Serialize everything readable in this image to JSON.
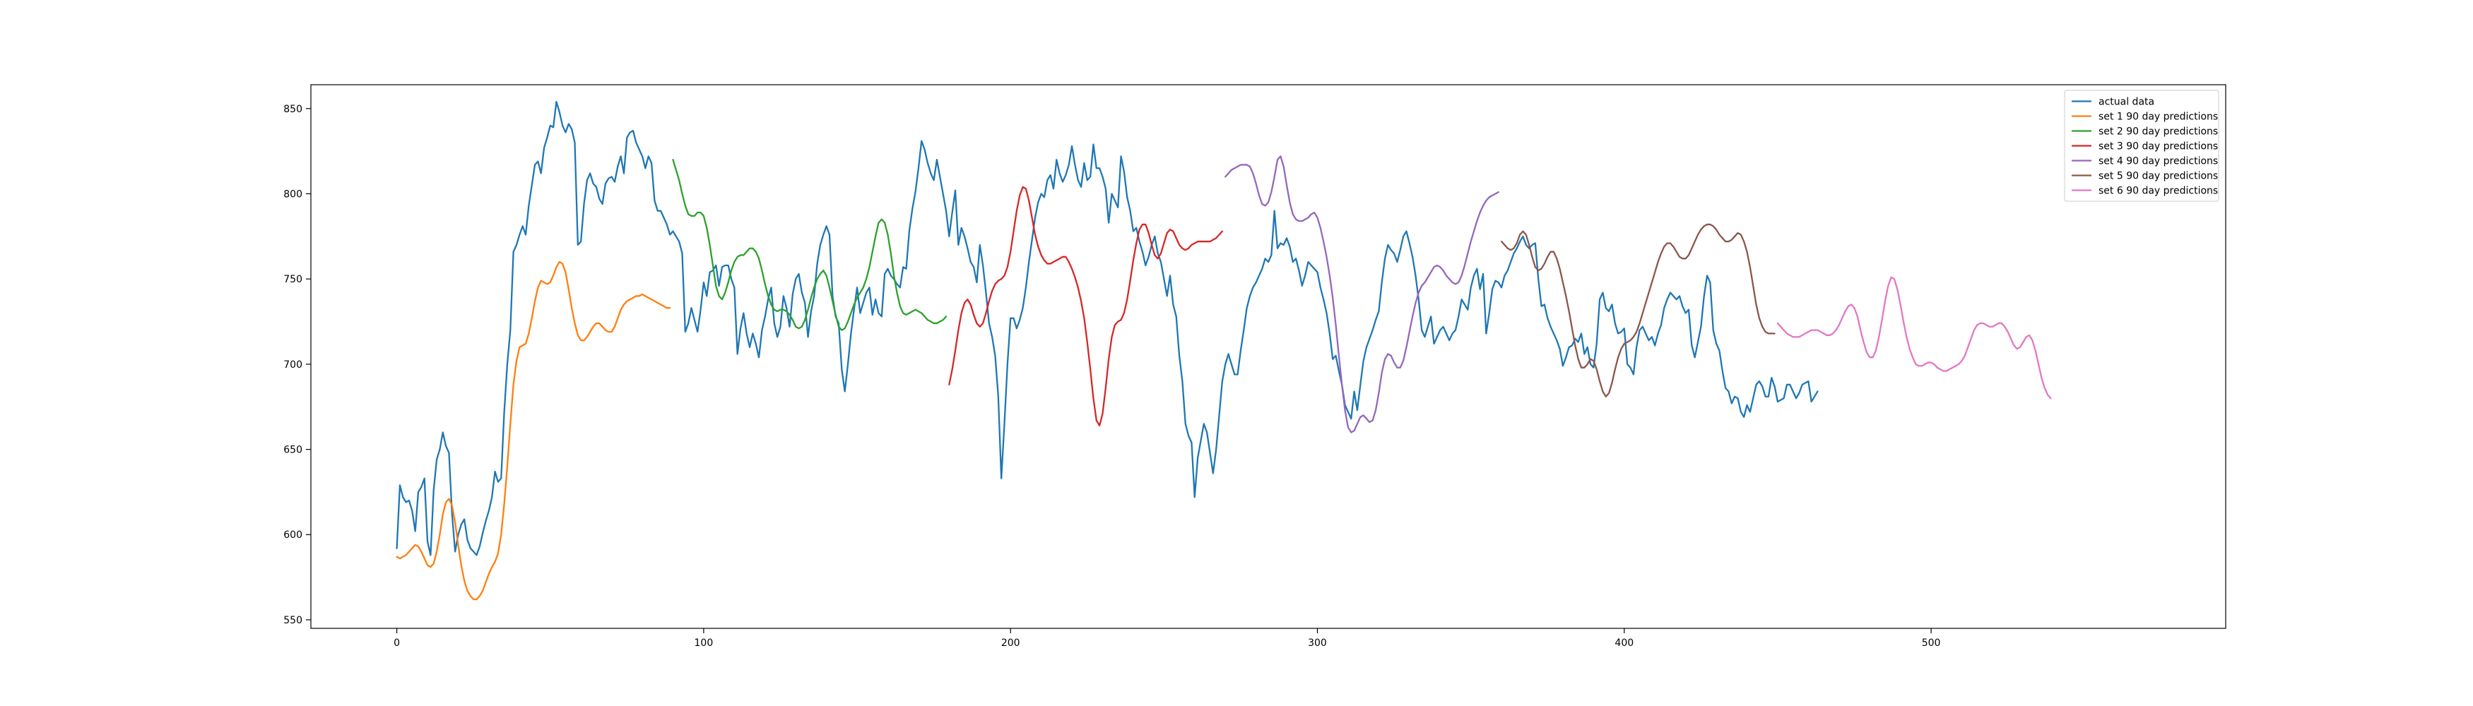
{
  "chart_data": {
    "type": "line",
    "title": "",
    "xlabel": "",
    "ylabel": "",
    "xlim": [
      -28,
      596
    ],
    "ylim": [
      545,
      864
    ],
    "xticks": [
      0,
      100,
      200,
      300,
      400,
      500
    ],
    "yticks": [
      550,
      600,
      650,
      700,
      750,
      800,
      850
    ],
    "grid": false,
    "legend_position": "top-right",
    "series": [
      {
        "name": "actual data",
        "color": "#1f77b4",
        "x_start": 0,
        "values": [
          592,
          629,
          622,
          619,
          620,
          614,
          602,
          625,
          628,
          633,
          596,
          588,
          626,
          644,
          650,
          660,
          652,
          648,
          612,
          590,
          600,
          606,
          609,
          597,
          592,
          590,
          588,
          593,
          601,
          608,
          614,
          622,
          637,
          631,
          633,
          672,
          700,
          720,
          766,
          770,
          776,
          781,
          776,
          793,
          805,
          817,
          819,
          812,
          827,
          833,
          840,
          839,
          854,
          848,
          840,
          836,
          841,
          838,
          830,
          770,
          772,
          794,
          808,
          812,
          806,
          804,
          797,
          794,
          806,
          809,
          810,
          807,
          816,
          822,
          812,
          833,
          836,
          837,
          830,
          826,
          822,
          815,
          822,
          818,
          796,
          790,
          790,
          786,
          782,
          776,
          778,
          775,
          772,
          765,
          719,
          724,
          733,
          726,
          719,
          732,
          748,
          740,
          754,
          755,
          758,
          746,
          757,
          758,
          758,
          750,
          745,
          706,
          721,
          730,
          718,
          710,
          718,
          712,
          704,
          720,
          728,
          738,
          745,
          724,
          716,
          722,
          740,
          733,
          722,
          741,
          750,
          753,
          742,
          736,
          716,
          731,
          740,
          759,
          770,
          776,
          781,
          776,
          740,
          728,
          724,
          697,
          684,
          700,
          718,
          732,
          745,
          730,
          736,
          742,
          745,
          729,
          738,
          730,
          728,
          753,
          756,
          752,
          750,
          747,
          745,
          757,
          756,
          778,
          791,
          801,
          815,
          831,
          826,
          818,
          812,
          808,
          820,
          810,
          800,
          790,
          775,
          789,
          802,
          770,
          780,
          775,
          768,
          760,
          757,
          748,
          770,
          758,
          742,
          724,
          716,
          705,
          681,
          633,
          665,
          700,
          727,
          727,
          721,
          726,
          733,
          745,
          760,
          773,
          786,
          795,
          800,
          798,
          808,
          811,
          803,
          820,
          812,
          807,
          811,
          817,
          828,
          817,
          808,
          804,
          818,
          808,
          810,
          829,
          815,
          815,
          810,
          803,
          783,
          800,
          796,
          792,
          822,
          813,
          798,
          790,
          778,
          780,
          772,
          766,
          758,
          763,
          770,
          775,
          765,
          760,
          750,
          740,
          752,
          735,
          728,
          705,
          690,
          665,
          658,
          654,
          622,
          645,
          655,
          665,
          660,
          648,
          636,
          650,
          670,
          690,
          700,
          706,
          700,
          694,
          694,
          708,
          720,
          733,
          740,
          745,
          748,
          752,
          756,
          762,
          760,
          764,
          790,
          768,
          771,
          770,
          774,
          769,
          760,
          762,
          755,
          746,
          752,
          760,
          758,
          756,
          754,
          745,
          738,
          730,
          718,
          703,
          705,
          696,
          688,
          676,
          672,
          668,
          684,
          673,
          688,
          702,
          710,
          715,
          720,
          726,
          731,
          748,
          762,
          770,
          767,
          765,
          760,
          767,
          775,
          778,
          771,
          763,
          752,
          738,
          720,
          716,
          722,
          728,
          712,
          716,
          720,
          722,
          718,
          714,
          718,
          720,
          728,
          738,
          735,
          732,
          745,
          752,
          756,
          744,
          753,
          718,
          730,
          744,
          749,
          748,
          745,
          752,
          755,
          760,
          765,
          768,
          772,
          775,
          770,
          768,
          770,
          771,
          750,
          734,
          735,
          727,
          722,
          718,
          714,
          709,
          699,
          704,
          710,
          711,
          715,
          713,
          718,
          706,
          710,
          700,
          698,
          712,
          738,
          742,
          733,
          731,
          735,
          724,
          718,
          719,
          721,
          700,
          698,
          694,
          710,
          720,
          722,
          718,
          714,
          716,
          711,
          718,
          723,
          733,
          738,
          742,
          740,
          738,
          740,
          734,
          730,
          732,
          711,
          704,
          713,
          722,
          740,
          752,
          748,
          720,
          712,
          708,
          696,
          686,
          684,
          677,
          681,
          680,
          672,
          669,
          676,
          672,
          680,
          688,
          690,
          687,
          681,
          681,
          692,
          687,
          678,
          679,
          680,
          688,
          688,
          684,
          680,
          683,
          688,
          689,
          690,
          678,
          681,
          684
        ]
      },
      {
        "name": "set 1 90 day predictions",
        "color": "#ff7f0e",
        "x_start": 0,
        "values": [
          587,
          586,
          587,
          588,
          590,
          592,
          594,
          593,
          590,
          586,
          582,
          581,
          583,
          590,
          600,
          612,
          619,
          621,
          617,
          607,
          594,
          582,
          573,
          567,
          564,
          562,
          562,
          564,
          567,
          572,
          577,
          581,
          584,
          589,
          600,
          618,
          640,
          665,
          688,
          702,
          710,
          711,
          712,
          718,
          727,
          737,
          745,
          749,
          748,
          747,
          748,
          752,
          757,
          760,
          759,
          754,
          744,
          733,
          724,
          717,
          714,
          714,
          716,
          719,
          722,
          724,
          724,
          722,
          720,
          719,
          719,
          722,
          727,
          732,
          735,
          737,
          738,
          739,
          740,
          740,
          741,
          740,
          739,
          738,
          737,
          736,
          735,
          734,
          733,
          733
        ]
      },
      {
        "name": "set 2 90 day predictions",
        "color": "#2ca02c",
        "x_start": 90,
        "values": [
          820,
          814,
          808,
          800,
          793,
          788,
          787,
          787,
          789,
          789,
          787,
          780,
          770,
          758,
          746,
          740,
          738,
          742,
          748,
          755,
          760,
          763,
          764,
          764,
          766,
          768,
          768,
          766,
          762,
          755,
          747,
          740,
          735,
          732,
          731,
          732,
          732,
          731,
          729,
          726,
          722,
          721,
          722,
          726,
          732,
          739,
          745,
          750,
          753,
          755,
          752,
          745,
          737,
          729,
          722,
          720,
          721,
          725,
          730,
          735,
          739,
          742,
          745,
          750,
          757,
          766,
          775,
          783,
          785,
          783,
          776,
          765,
          752,
          742,
          734,
          730,
          729,
          730,
          731,
          732,
          731,
          730,
          728,
          726,
          725,
          724,
          724,
          725,
          726,
          728
        ]
      },
      {
        "name": "set 3 90 day predictions",
        "color": "#d62728",
        "x_start": 180,
        "values": [
          688,
          697,
          708,
          720,
          730,
          736,
          738,
          735,
          729,
          724,
          722,
          724,
          730,
          737,
          743,
          747,
          749,
          750,
          752,
          757,
          766,
          778,
          790,
          799,
          804,
          803,
          796,
          786,
          776,
          769,
          764,
          761,
          759,
          759,
          760,
          761,
          762,
          763,
          763,
          760,
          756,
          751,
          745,
          737,
          727,
          713,
          697,
          680,
          667,
          664,
          671,
          686,
          703,
          716,
          723,
          725,
          726,
          730,
          738,
          749,
          761,
          771,
          779,
          782,
          782,
          777,
          770,
          764,
          762,
          765,
          771,
          777,
          779,
          778,
          774,
          770,
          768,
          767,
          768,
          770,
          771,
          772,
          772,
          772,
          772,
          772,
          773,
          774,
          776,
          778
        ]
      },
      {
        "name": "set 4 90 day predictions",
        "color": "#9467bd",
        "x_start": 270,
        "values": [
          810,
          812,
          814,
          815,
          816,
          817,
          817,
          817,
          816,
          812,
          806,
          799,
          794,
          793,
          795,
          801,
          810,
          820,
          822,
          816,
          805,
          795,
          788,
          785,
          784,
          784,
          785,
          786,
          788,
          789,
          786,
          780,
          772,
          763,
          752,
          739,
          723,
          705,
          688,
          673,
          663,
          660,
          661,
          665,
          669,
          670,
          668,
          666,
          667,
          673,
          683,
          695,
          703,
          706,
          705,
          701,
          698,
          698,
          702,
          710,
          719,
          728,
          736,
          742,
          746,
          748,
          751,
          754,
          757,
          758,
          757,
          755,
          752,
          750,
          748,
          747,
          748,
          752,
          758,
          765,
          772,
          778,
          784,
          789,
          793,
          796,
          798,
          799,
          800,
          801
        ]
      },
      {
        "name": "set 5 90 day predictions",
        "color": "#8c564b",
        "x_start": 360,
        "values": [
          772,
          770,
          768,
          767,
          768,
          771,
          776,
          778,
          776,
          770,
          763,
          757,
          755,
          756,
          759,
          763,
          766,
          766,
          762,
          756,
          748,
          740,
          731,
          721,
          711,
          703,
          698,
          698,
          700,
          703,
          702,
          697,
          690,
          684,
          681,
          683,
          689,
          697,
          704,
          709,
          712,
          713,
          714,
          716,
          719,
          724,
          730,
          736,
          742,
          748,
          754,
          760,
          765,
          769,
          771,
          771,
          769,
          766,
          763,
          762,
          762,
          764,
          768,
          772,
          776,
          779,
          781,
          782,
          782,
          781,
          779,
          776,
          774,
          772,
          772,
          773,
          775,
          777,
          776,
          772,
          766,
          757,
          746,
          735,
          727,
          722,
          719,
          718,
          718,
          718
        ]
      },
      {
        "name": "set 6 90 day predictions",
        "color": "#e377c2",
        "x_start": 450,
        "values": [
          724,
          722,
          720,
          718,
          717,
          716,
          716,
          716,
          717,
          718,
          719,
          720,
          720,
          720,
          719,
          718,
          717,
          717,
          718,
          720,
          723,
          727,
          731,
          734,
          735,
          733,
          728,
          720,
          713,
          707,
          704,
          704,
          708,
          716,
          726,
          737,
          746,
          751,
          750,
          744,
          735,
          725,
          716,
          709,
          704,
          700,
          699,
          699,
          700,
          701,
          701,
          700,
          698,
          697,
          696,
          696,
          697,
          698,
          699,
          700,
          702,
          705,
          710,
          715,
          720,
          723,
          724,
          724,
          723,
          722,
          722,
          723,
          724,
          724,
          722,
          719,
          715,
          711,
          709,
          710,
          713,
          716,
          717,
          714,
          708,
          700,
          692,
          686,
          682,
          680
        ]
      }
    ]
  }
}
